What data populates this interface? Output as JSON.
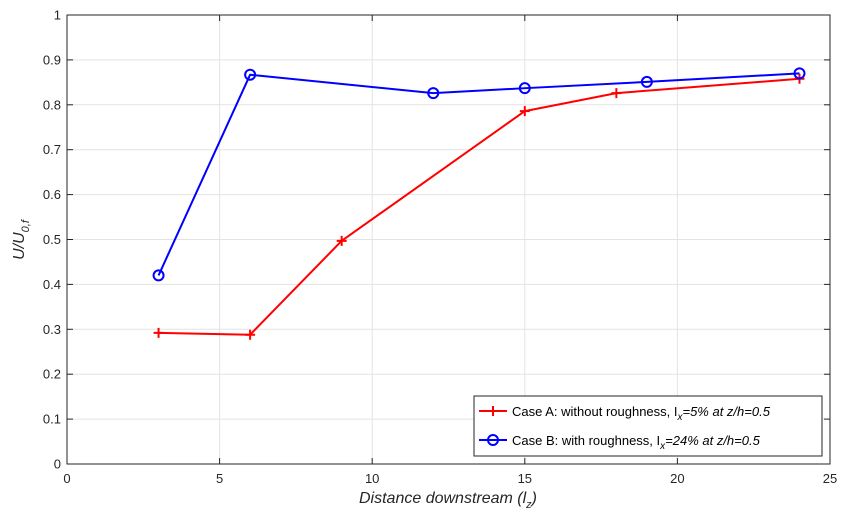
{
  "chart_data": {
    "type": "line",
    "xlabel": "Distance downstream (l",
    "xlabel_sub": "z",
    "xlabel_close": ")",
    "ylabel": "U/U",
    "ylabel_sub": "0,f",
    "xlim": [
      0,
      25
    ],
    "ylim": [
      0,
      1
    ],
    "xticks": [
      0,
      5,
      10,
      15,
      20,
      25
    ],
    "yticks": [
      0,
      0.1,
      0.2,
      0.3,
      0.4,
      0.5,
      0.6,
      0.7,
      0.8,
      0.9,
      1
    ],
    "xtick_labels": [
      "0",
      "5",
      "10",
      "15",
      "20",
      "25"
    ],
    "ytick_labels": [
      "0",
      "0.1",
      "0.2",
      "0.3",
      "0.4",
      "0.5",
      "0.6",
      "0.7",
      "0.8",
      "0.9",
      "1"
    ],
    "grid": true,
    "legend_position": "bottom-right",
    "series": [
      {
        "name": "Case A: without roughness, I",
        "name_sub": "x",
        "name_tail": "=5% at z/h=0.5",
        "color": "#ff0000",
        "marker": "plus",
        "x": [
          3,
          6,
          9,
          15,
          18,
          24
        ],
        "y": [
          0.292,
          0.288,
          0.497,
          0.786,
          0.826,
          0.858
        ]
      },
      {
        "name": "Case B: with roughness, I",
        "name_sub": "x",
        "name_tail": "=24% at z/h=0.5",
        "color": "#0000ff",
        "marker": "circle",
        "x": [
          3,
          6,
          12,
          15,
          19,
          24
        ],
        "y": [
          0.42,
          0.867,
          0.826,
          0.837,
          0.851,
          0.87
        ]
      }
    ]
  }
}
